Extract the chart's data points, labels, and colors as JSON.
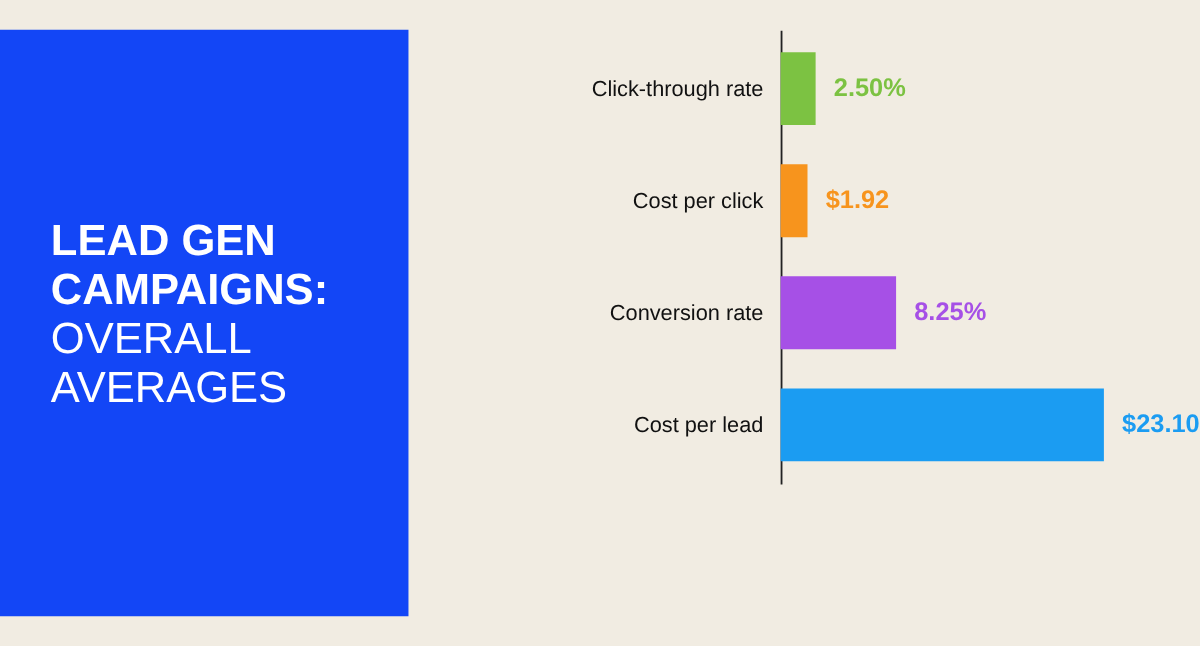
{
  "chart_data": {
    "type": "bar",
    "orientation": "horizontal",
    "title": "LEAD GEN CAMPAIGNS:",
    "subtitle": "OVERALL AVERAGES",
    "categories": [
      "Click-through rate",
      "Cost per click",
      "Conversion rate",
      "Cost per lead"
    ],
    "values": [
      2.5,
      1.92,
      8.25,
      23.1
    ],
    "colors": [
      "#7cc242",
      "#f7941d",
      "#a650e6",
      "#1b9cf2"
    ],
    "value_labels": [
      "2.50%",
      "$1.92",
      "8.25%",
      "$23.10"
    ],
    "data_labels": false
  }
}
